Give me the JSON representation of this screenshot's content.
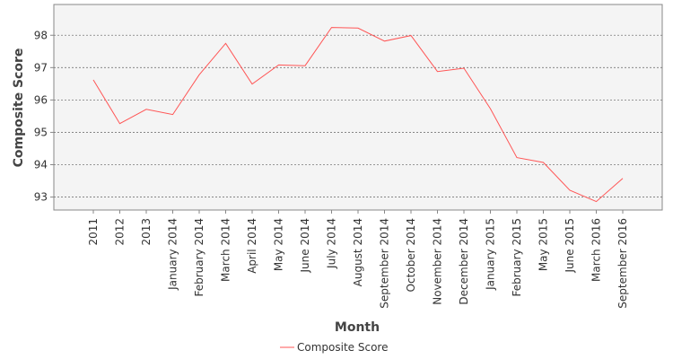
{
  "chart_data": {
    "type": "line",
    "title": "",
    "xlabel": "Month",
    "ylabel": "Composite Score",
    "categories": [
      "2011",
      "2012",
      "2013",
      "January 2014",
      "February 2014",
      "March 2014",
      "April 2014",
      "May 2014",
      "June 2014",
      "July 2014",
      "August 2014",
      "September 2014",
      "October 2014",
      "November 2014",
      "December 2014",
      "January 2015",
      "February 2015",
      "May 2015",
      "June 2015",
      "March 2016",
      "September 2016"
    ],
    "series": [
      {
        "name": "Composite Score",
        "color": "#ff5555",
        "values": [
          96.62,
          95.27,
          95.71,
          95.55,
          96.78,
          97.75,
          96.49,
          97.08,
          97.06,
          98.24,
          98.22,
          97.82,
          97.99,
          96.88,
          96.98,
          95.73,
          94.22,
          94.07,
          93.21,
          92.86,
          93.58
        ]
      }
    ],
    "ylim": [
      92.6,
      98.95
    ],
    "yticks": [
      93,
      94,
      95,
      96,
      97,
      98
    ],
    "grid": true,
    "legend_position": "bottom-center"
  }
}
